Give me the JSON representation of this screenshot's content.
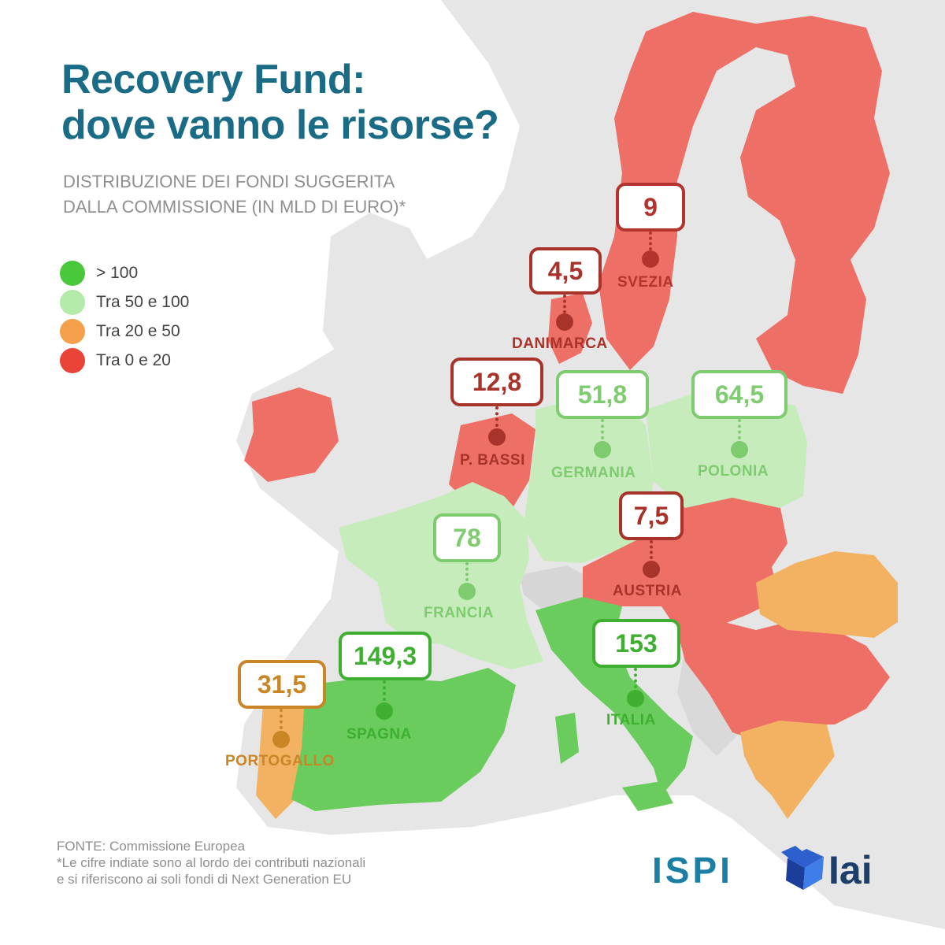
{
  "title": {
    "line1": "Recovery Fund:",
    "line2": "dove vanno le risorse?"
  },
  "subtitle": {
    "line1": "DISTRIBUZIONE DEI FONDI SUGGERITA",
    "line2": "DALLA COMMISSIONE (IN MLD DI EURO)*"
  },
  "colors": {
    "title": "#1a6b86",
    "background_land": "#e6e6e6",
    "tier_gt100": "#49c83b",
    "tier_50_100": "#b4ebaa",
    "tier_20_50": "#f4a04a",
    "tier_0_20": "#ea4337",
    "region_gt100": "#69cc5c",
    "region_50_100": "#c7ecbb",
    "region_20_50": "#f2b262",
    "region_0_20": "#ee6f65"
  },
  "legend": [
    {
      "label": "> 100",
      "color": "#49c83b"
    },
    {
      "label": "Tra 50 e 100",
      "color": "#b4ebaa"
    },
    {
      "label": "Tra 20 e 50",
      "color": "#f4a04a"
    },
    {
      "label": "Tra 0 e 20",
      "color": "#ea4337"
    }
  ],
  "countries": [
    {
      "name": "SVEZIA",
      "value": "9",
      "tier": "Tra 0 e 20"
    },
    {
      "name": "DANIMARCA",
      "value": "4,5",
      "tier": "Tra 0 e 20"
    },
    {
      "name": "P. BASSI",
      "value": "12,8",
      "tier": "Tra 0 e 20"
    },
    {
      "name": "GERMANIA",
      "value": "51,8",
      "tier": "Tra 50 e 100"
    },
    {
      "name": "POLONIA",
      "value": "64,5",
      "tier": "Tra 50 e 100"
    },
    {
      "name": "AUSTRIA",
      "value": "7,5",
      "tier": "Tra 0 e 20"
    },
    {
      "name": "FRANCIA",
      "value": "78",
      "tier": "Tra 50 e 100"
    },
    {
      "name": "SPAGNA",
      "value": "149,3",
      "tier": "> 100"
    },
    {
      "name": "ITALIA",
      "value": "153",
      "tier": "> 100"
    },
    {
      "name": "PORTOGALLO",
      "value": "31,5",
      "tier": "Tra 20 e 50"
    }
  ],
  "footer": {
    "source": "FONTE: Commissione Europea",
    "note_line1": "*Le cifre indiate sono al lordo dei contributi nazionali",
    "note_line2": "e si riferiscono ai soli fondi di Next Generation EU"
  },
  "logos": {
    "ispi": "ISPI",
    "iai": "IAI"
  }
}
